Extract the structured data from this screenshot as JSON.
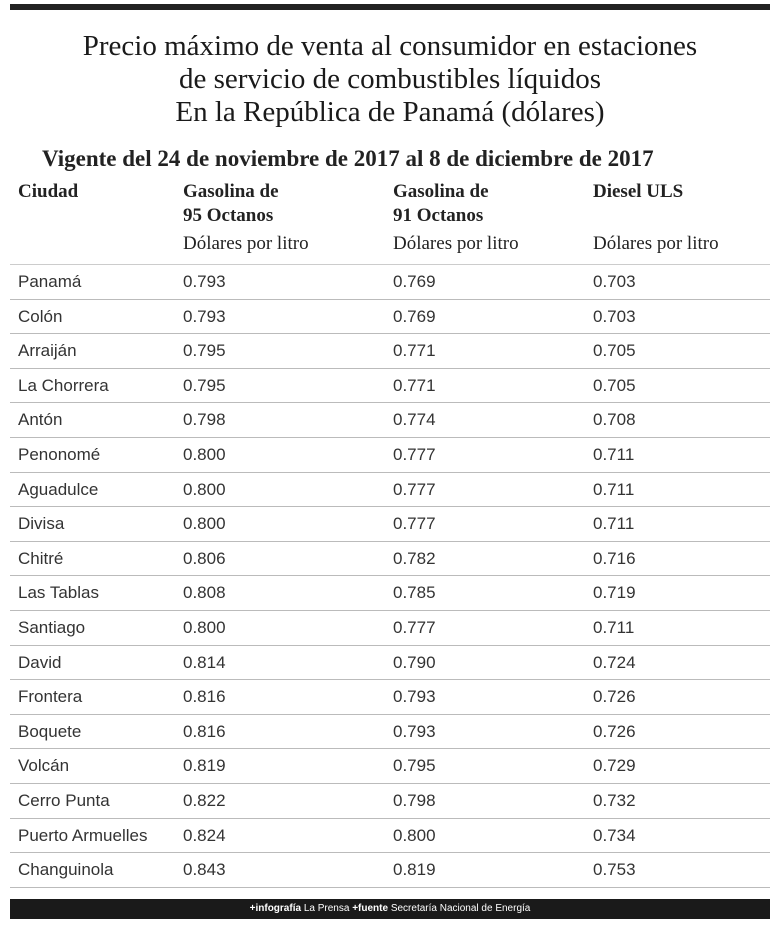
{
  "header": {
    "title": [
      "Precio máximo de venta al consumidor en estaciones",
      "de servicio de combustibles líquidos",
      "En la República de Panamá (dólares)"
    ],
    "subtitle": "Vigente del 24 de noviembre de 2017 al 8 de diciembre de 2017"
  },
  "table": {
    "columns": [
      {
        "name": [
          "Ciudad"
        ]
      },
      {
        "name": [
          "Gasolina de",
          "95 Octanos"
        ],
        "unit": "Dólares por litro"
      },
      {
        "name": [
          "Gasolina de",
          "91 Octanos"
        ],
        "unit": "Dólares por litro"
      },
      {
        "name": [
          "Diesel ULS"
        ],
        "unit": "Dólares por litro"
      }
    ],
    "rows": [
      [
        "Panamá",
        "0.793",
        "0.769",
        "0.703"
      ],
      [
        "Colón",
        "0.793",
        "0.769",
        "0.703"
      ],
      [
        "Arraiján",
        "0.795",
        "0.771",
        "0.705"
      ],
      [
        "La Chorrera",
        "0.795",
        "0.771",
        "0.705"
      ],
      [
        "Antón",
        "0.798",
        "0.774",
        "0.708"
      ],
      [
        "Penonomé",
        "0.800",
        "0.777",
        "0.711"
      ],
      [
        "Aguadulce",
        "0.800",
        "0.777",
        "0.711"
      ],
      [
        "Divisa",
        "0.800",
        "0.777",
        "0.711"
      ],
      [
        "Chitré",
        "0.806",
        "0.782",
        "0.716"
      ],
      [
        "Las Tablas",
        "0.808",
        "0.785",
        "0.719"
      ],
      [
        "Santiago",
        "0.800",
        "0.777",
        "0.711"
      ],
      [
        "David",
        "0.814",
        "0.790",
        "0.724"
      ],
      [
        "Frontera",
        "0.816",
        "0.793",
        "0.726"
      ],
      [
        "Boquete",
        "0.816",
        "0.793",
        "0.726"
      ],
      [
        "Volcán",
        "0.819",
        "0.795",
        "0.729"
      ],
      [
        "Cerro Punta",
        "0.822",
        "0.798",
        "0.732"
      ],
      [
        "Puerto Armuelles",
        "0.824",
        "0.800",
        "0.734"
      ],
      [
        "Changuinola",
        "0.843",
        "0.819",
        "0.753"
      ]
    ]
  },
  "footer": {
    "credit_label": "+infografía",
    "credit": "La Prensa",
    "source_label": "+fuente",
    "source": "Secretaría Nacional de Energía"
  }
}
